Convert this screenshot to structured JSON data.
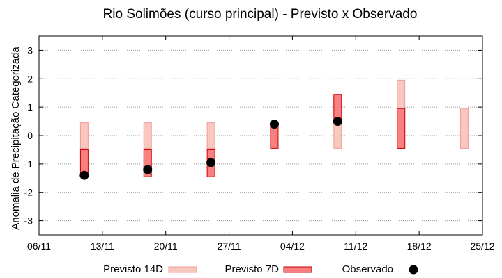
{
  "chart_data": {
    "type": "bar",
    "title": "Rio Solimões (curso principal) - Previsto x Observado",
    "ylabel": "Anomalia de Precipitação Categorizada",
    "xlabel": "",
    "ylim": [
      -3.5,
      3.5
    ],
    "y_ticks": [
      "3",
      "2",
      "1",
      "0",
      "-1",
      "-2",
      "-3"
    ],
    "y_tick_values": [
      3,
      2,
      1,
      0,
      -1,
      -2,
      -3
    ],
    "x_ticks": [
      "06/11",
      "13/11",
      "20/11",
      "27/11",
      "04/12",
      "11/12",
      "18/12",
      "25/12"
    ],
    "grid": true,
    "legend_position": "bottom",
    "series": [
      {
        "name": "Previsto 14D",
        "color": "#f8c8c0",
        "edge_color": "#f09c98",
        "ranges": [
          {
            "x": "11/11",
            "low": -0.45,
            "high": 0.45
          },
          {
            "x": "18/11",
            "low": -0.45,
            "high": 0.45
          },
          {
            "x": "25/11",
            "low": -0.45,
            "high": 0.45
          },
          {
            "x": "09/12",
            "low": -0.45,
            "high": 1.45
          },
          {
            "x": "16/12",
            "low": -0.45,
            "high": 1.95
          },
          {
            "x": "23/12",
            "low": -0.45,
            "high": 0.95
          }
        ]
      },
      {
        "name": "Previsto 7D",
        "color": "#f88080",
        "edge_color": "#cc0000",
        "ranges": [
          {
            "x": "11/11",
            "low": -1.45,
            "high": -0.5
          },
          {
            "x": "18/11",
            "low": -1.45,
            "high": -0.5
          },
          {
            "x": "25/11",
            "low": -1.45,
            "high": -0.5
          },
          {
            "x": "02/12",
            "low": -0.45,
            "high": 0.45
          },
          {
            "x": "09/12",
            "low": 0.5,
            "high": 1.45
          },
          {
            "x": "16/12",
            "low": -0.45,
            "high": 0.95
          }
        ]
      },
      {
        "name": "Observado",
        "color": "#000000",
        "points": [
          {
            "x": "11/11",
            "y": -1.4
          },
          {
            "x": "18/11",
            "y": -1.2
          },
          {
            "x": "25/11",
            "y": -0.95
          },
          {
            "x": "02/12",
            "y": 0.4
          },
          {
            "x": "09/12",
            "y": 0.5
          }
        ]
      }
    ]
  }
}
